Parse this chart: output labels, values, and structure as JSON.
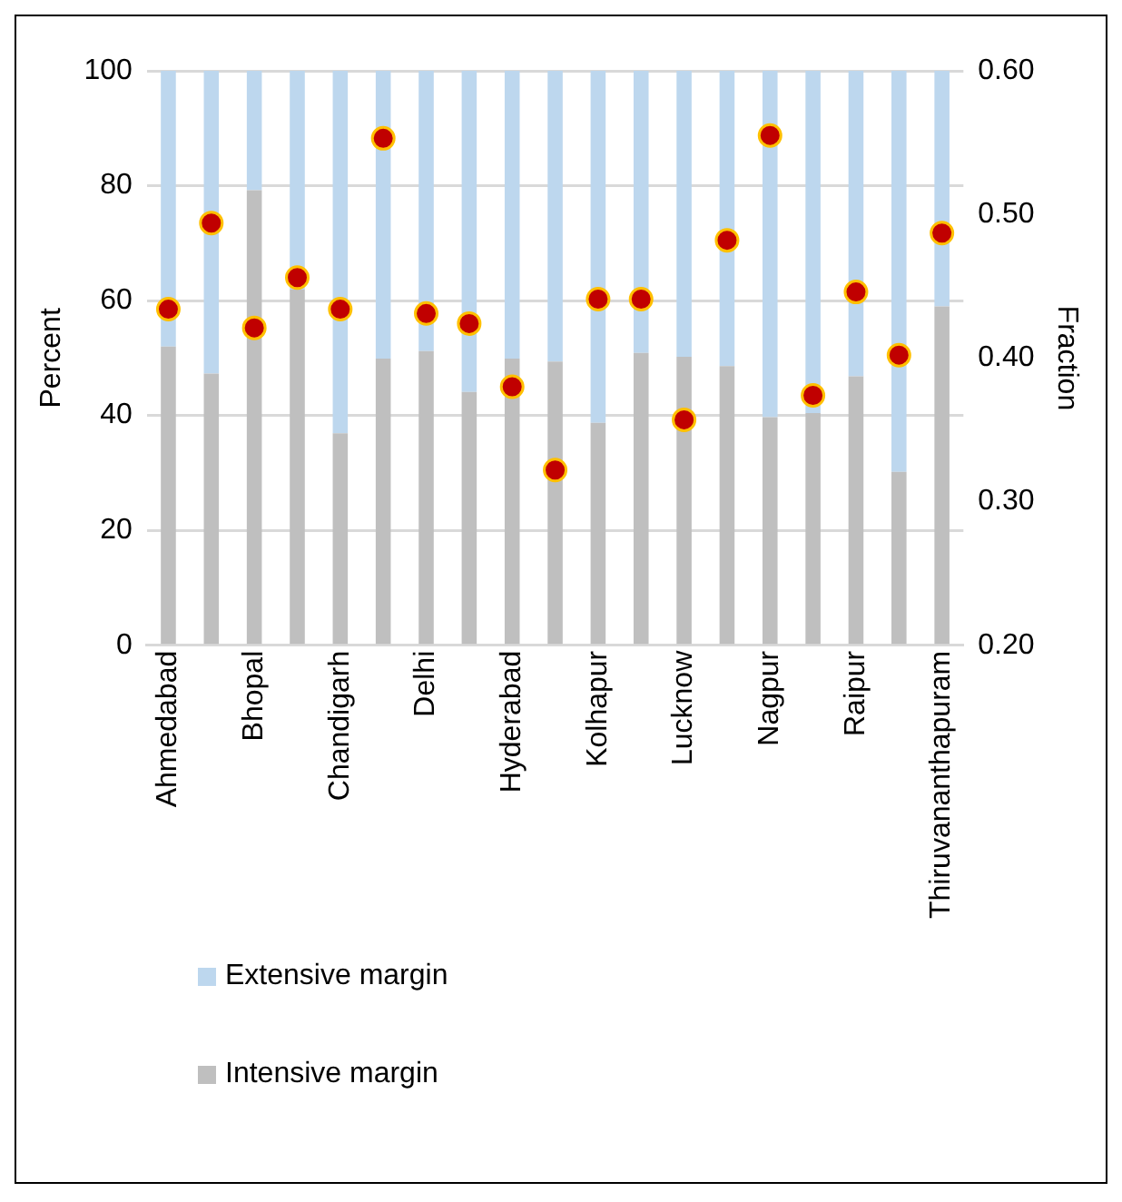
{
  "chart_data": {
    "type": "bar",
    "stacked": true,
    "ylabel": "Percent",
    "y2label": "Fraction",
    "categories": [
      "Ahmedabad",
      null,
      "Bhopal",
      null,
      "Chandigarh",
      null,
      "Delhi",
      null,
      "Hyderabad",
      null,
      "Kolhapur",
      null,
      "Lucknow",
      null,
      "Nagpur",
      null,
      "Raipur",
      null,
      "Thiruvananthapuram"
    ],
    "series": [
      {
        "name": "Intensive margin",
        "color": "#bfbfbf",
        "values": [
          52,
          47.3,
          79.2,
          61.9,
          36.9,
          49.9,
          51.2,
          44.1,
          49.9,
          49.4,
          38.7,
          50.9,
          50.2,
          48.6,
          39.7,
          40.4,
          46.8,
          30.2,
          59
        ]
      },
      {
        "name": "Extensive margin",
        "color": "#bdd7ee",
        "values": [
          48,
          52.7,
          20.8,
          38.1,
          63.1,
          50.1,
          48.8,
          55.9,
          50.1,
          50.6,
          61.3,
          49.1,
          49.8,
          51.4,
          60.3,
          59.6,
          53.2,
          69.8,
          41
        ]
      },
      {
        "type": "scatter",
        "axis": "y2",
        "color": "#c00000",
        "values": [
          0.434,
          0.494,
          0.421,
          0.456,
          0.434,
          0.553,
          0.431,
          0.424,
          0.38,
          0.322,
          0.441,
          0.441,
          0.357,
          0.482,
          0.555,
          0.374,
          0.446,
          0.402,
          0.487
        ]
      }
    ],
    "ylim": [
      0,
      100
    ],
    "yticks": [
      0,
      20,
      40,
      60,
      80,
      100
    ],
    "y2lim": [
      0.2,
      0.6
    ],
    "y2ticks": [
      {
        "value": 0.2,
        "label": "0.20"
      },
      {
        "value": 0.3,
        "label": "0.30"
      },
      {
        "value": 0.4,
        "label": "0.40"
      },
      {
        "value": 0.5,
        "label": "0.50"
      },
      {
        "value": 0.6,
        "label": "0.60"
      }
    ],
    "grid": "y",
    "legend": "bottom",
    "marker": "circle"
  }
}
